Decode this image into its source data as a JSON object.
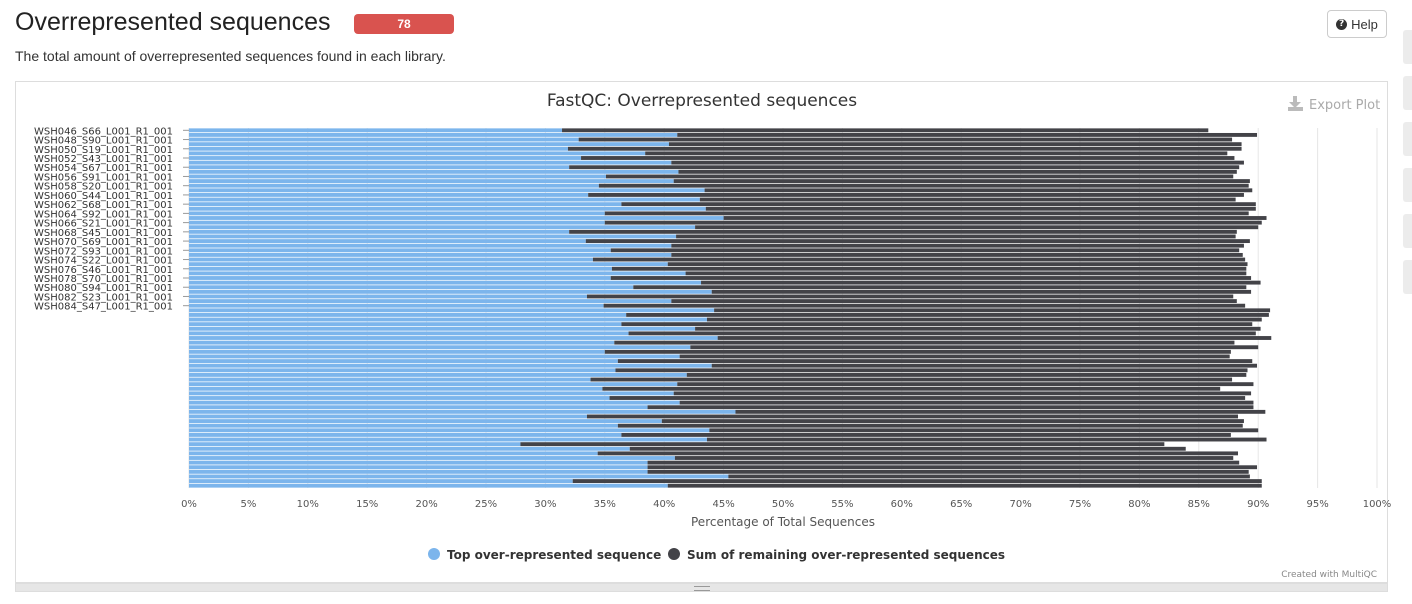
{
  "header": {
    "title": "Overrepresented sequences",
    "badge": "78",
    "help_label": "Help",
    "description": "The total amount of overrepresented sequences found in each library."
  },
  "plot": {
    "export_label": "Export Plot",
    "credit": "Created with MultiQC"
  },
  "colors": {
    "top": "#7cb5ec",
    "remaining": "#434348",
    "badge": "#d9534f"
  },
  "chart_data": {
    "type": "bar",
    "orientation": "horizontal",
    "stacked": true,
    "title": "FastQC: Overrepresented sequences",
    "xlabel": "Percentage of Total Sequences",
    "xlim": [
      0,
      100
    ],
    "xticks": [
      "0%",
      "5%",
      "10%",
      "15%",
      "20%",
      "25%",
      "30%",
      "35%",
      "40%",
      "45%",
      "50%",
      "55%",
      "60%",
      "65%",
      "70%",
      "75%",
      "80%",
      "85%",
      "90%",
      "95%",
      "100%"
    ],
    "ytick_labels": [
      "WSH046_S66_L001_R1_001",
      "WSH048_S90_L001_R1_001",
      "WSH050_S19_L001_R1_001",
      "WSH052_S43_L001_R1_001",
      "WSH054_S67_L001_R1_001",
      "WSH056_S91_L001_R1_001",
      "WSH058_S20_L001_R1_001",
      "WSH060_S44_L001_R1_001",
      "WSH062_S68_L001_R1_001",
      "WSH064_S92_L001_R1_001",
      "WSH066_S21_L001_R1_001",
      "WSH068_S45_L001_R1_001",
      "WSH070_S69_L001_R1_001",
      "WSH072_S93_L001_R1_001",
      "WSH074_S22_L001_R1_001",
      "WSH076_S46_L001_R1_001",
      "WSH078_S70_L001_R1_001",
      "WSH080_S94_L001_R1_001",
      "WSH082_S23_L001_R1_001",
      "WSH084_S47_L001_R1_001"
    ],
    "legend": [
      "Top over-represented sequence",
      "Sum of remaining over-represented sequences"
    ],
    "legend_position": "bottom",
    "series": [
      {
        "name": "Top over-represented sequence",
        "values": [
          31.4,
          41.1,
          32.8,
          40.4,
          31.9,
          38.4,
          33.0,
          40.6,
          32.0,
          41.2,
          35.1,
          40.8,
          34.5,
          43.4,
          33.6,
          43.0,
          36.4,
          43.5,
          35.0,
          45.0,
          35.0,
          42.6,
          32.0,
          41.0,
          33.4,
          40.6,
          35.5,
          40.6,
          34.0,
          40.3,
          35.6,
          41.8,
          35.5,
          43.1,
          37.4,
          44.0,
          33.5,
          40.6,
          34.9,
          44.2,
          36.8,
          43.6,
          36.4,
          42.6,
          37.0,
          44.5,
          35.8,
          42.2,
          35.0,
          41.3,
          36.1,
          44.0,
          35.9,
          41.9,
          33.8,
          41.1,
          34.8,
          40.8,
          35.4,
          41.3,
          38.6,
          46.0,
          33.5,
          39.8,
          36.1,
          43.8,
          36.4,
          43.6,
          27.9,
          37.1,
          34.4,
          40.9,
          38.6,
          38.6,
          38.6,
          45.4,
          32.3,
          40.3
        ]
      },
      {
        "name": "Sum of remaining over-represented sequences",
        "values": [
          54.4,
          48.8,
          55.0,
          48.2,
          56.7,
          49.0,
          55.0,
          48.2,
          56.4,
          47.0,
          52.8,
          48.5,
          54.7,
          46.1,
          55.2,
          45.1,
          53.4,
          46.3,
          54.2,
          45.7,
          55.3,
          47.4,
          56.2,
          47.1,
          55.9,
          48.2,
          52.9,
          48.1,
          54.9,
          48.8,
          53.4,
          47.2,
          53.9,
          47.1,
          51.6,
          45.4,
          54.4,
          47.6,
          54.0,
          46.8,
          54.1,
          46.7,
          53.1,
          47.6,
          52.8,
          46.6,
          52.2,
          47.8,
          52.7,
          46.3,
          53.4,
          45.9,
          53.2,
          47.1,
          54.0,
          48.5,
          52.0,
          48.6,
          53.5,
          48.3,
          51.0,
          44.6,
          54.8,
          49.0,
          52.6,
          46.2,
          51.3,
          47.1,
          54.2,
          46.8,
          53.9,
          47.0,
          49.8,
          51.3,
          50.6,
          43.9,
          58.0,
          50.0
        ]
      }
    ]
  }
}
